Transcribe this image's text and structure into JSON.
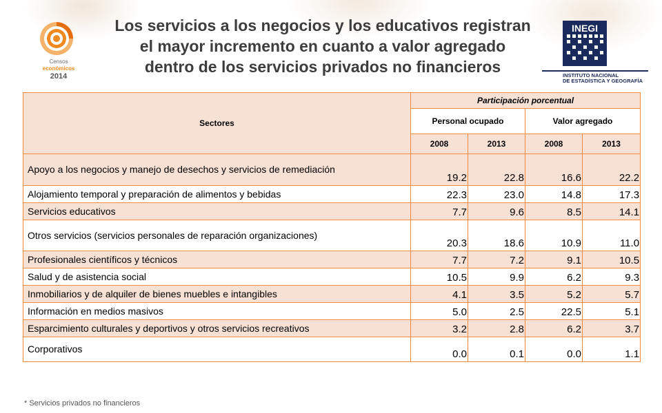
{
  "title_lines": [
    "Los servicios a los negocios y los educativos registran",
    "el mayor incremento en cuanto a valor agregado",
    "dentro de los servicios privados no financieros"
  ],
  "censos_logo": {
    "line1": "Censos",
    "line2": "económicos",
    "year": "2014"
  },
  "inegi_logo": {
    "abbr": "INEGI",
    "line1": "INSTITUTO NACIONAL",
    "line2": "DE ESTADÍSTICA Y GEOGRAFÍA"
  },
  "table": {
    "sectors_header": "Sectores",
    "group_header": "Participación porcentual",
    "sub_headers": [
      "Personal ocupado",
      "Valor agregado"
    ],
    "years": [
      "2008",
      "2013",
      "2008",
      "2013"
    ],
    "rows": [
      {
        "sector": "Apoyo a los negocios y manejo de desechos y servicios de remediación",
        "values": [
          "19.2",
          "22.8",
          "16.6",
          "22.2"
        ]
      },
      {
        "sector": "Alojamiento temporal y preparación de alimentos y bebidas",
        "values": [
          "22.3",
          "23.0",
          "14.8",
          "17.3"
        ]
      },
      {
        "sector": "Servicios educativos",
        "values": [
          "7.7",
          "9.6",
          "8.5",
          "14.1"
        ]
      },
      {
        "sector": "Otros servicios (servicios personales de reparación organizaciones)",
        "values": [
          "20.3",
          "18.6",
          "10.9",
          "11.0"
        ]
      },
      {
        "sector": "Profesionales científicos y técnicos",
        "values": [
          "7.7",
          "7.2",
          "9.1",
          "10.5"
        ]
      },
      {
        "sector": "Salud y de asistencia social",
        "values": [
          "10.5",
          "9.9",
          "6.2",
          "9.3"
        ]
      },
      {
        "sector": "Inmobiliarios y de alquiler de bienes muebles e intangibles",
        "values": [
          "4.1",
          "3.5",
          "5.2",
          "5.7"
        ]
      },
      {
        "sector": "Información en medios masivos",
        "values": [
          "5.0",
          "2.5",
          "22.5",
          "5.1"
        ]
      },
      {
        "sector": "Esparcimiento culturales y deportivos y otros servicios recreativos",
        "values": [
          "3.2",
          "2.8",
          "6.2",
          "3.7"
        ]
      },
      {
        "sector": "Corporativos",
        "values": [
          "0.0",
          "0.1",
          "0.0",
          "1.1"
        ]
      }
    ]
  },
  "footnote": "* Servicios privados no financieros",
  "colors": {
    "border": "#f08a3a",
    "shade": "#f7e1d5",
    "title": "#3d3d3d",
    "logo_orange": "#f08a1f",
    "inegi_blue": "#1b2a5c"
  }
}
